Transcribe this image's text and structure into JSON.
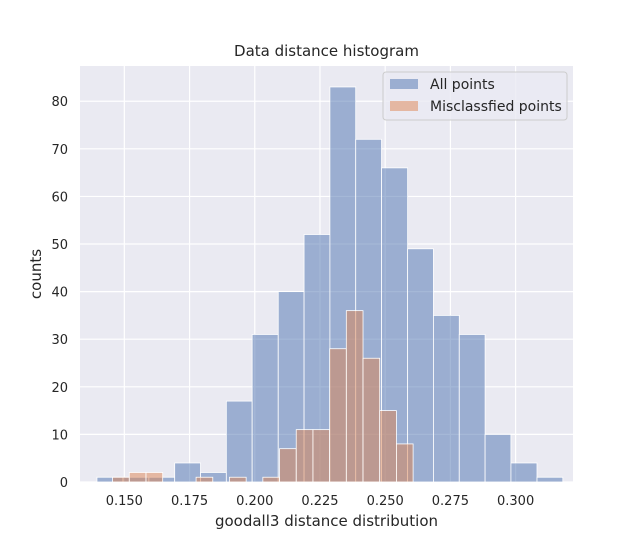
{
  "chart_data": {
    "type": "bar",
    "title": "Data distance histogram",
    "xlabel": "goodall3 distance distribution",
    "ylabel": "counts",
    "xlim": [
      0.133,
      0.322
    ],
    "ylim": [
      0,
      87.4
    ],
    "xticks": [
      0.15,
      0.175,
      0.2,
      0.225,
      0.25,
      0.275,
      0.3
    ],
    "xtick_labels": [
      "0.150",
      "0.175",
      "0.200",
      "0.225",
      "0.250",
      "0.275",
      "0.300"
    ],
    "yticks": [
      0,
      10,
      20,
      30,
      40,
      50,
      60,
      70,
      80
    ],
    "ytick_labels": [
      "0",
      "10",
      "20",
      "30",
      "40",
      "50",
      "60",
      "70",
      "80"
    ],
    "grid": true,
    "legend_position": "top-right",
    "series": [
      {
        "name": "All points",
        "color": "#4c72b0",
        "alpha": 0.5,
        "bin_edges": [
          0.1395,
          0.1495,
          0.1594,
          0.1693,
          0.1792,
          0.1891,
          0.199,
          0.209,
          0.2189,
          0.2288,
          0.2387,
          0.2486,
          0.2586,
          0.2685,
          0.2784,
          0.2883,
          0.2982,
          0.3082,
          0.3181
        ],
        "values": [
          1,
          1,
          1,
          4,
          2,
          17,
          31,
          40,
          52,
          83,
          72,
          66,
          49,
          35,
          31,
          10,
          4,
          1
        ]
      },
      {
        "name": "Misclassfied points",
        "color": "#dd8452",
        "alpha": 0.5,
        "bin_edges": [
          0.1455,
          0.1519,
          0.1583,
          0.1647,
          0.1711,
          0.1775,
          0.1839,
          0.1903,
          0.1967,
          0.2031,
          0.2095,
          0.2159,
          0.2223,
          0.2287,
          0.2351,
          0.2415,
          0.2479,
          0.2543,
          0.2607,
          0.2671
        ],
        "values": [
          1,
          2,
          2,
          0,
          0,
          1,
          0,
          1,
          0,
          1,
          7,
          11,
          11,
          28,
          36,
          26,
          15,
          8,
          0
        ]
      }
    ]
  }
}
